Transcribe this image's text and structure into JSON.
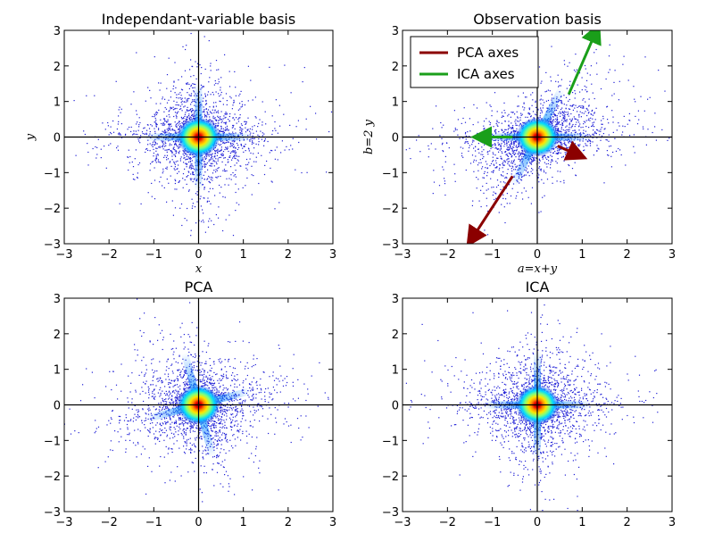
{
  "figure": {
    "background": "#ffffff"
  },
  "colors": {
    "scatter_point": "#1f1fd6",
    "axis_line": "#000000",
    "pca_axes": "#8b0000",
    "ica_axes": "#1a9f1a"
  },
  "chart_data": [
    {
      "type": "scatter",
      "title": "Independant-variable basis",
      "xlabel": "x",
      "ylabel": "y",
      "xlim": [
        -3,
        3
      ],
      "ylim": [
        -3,
        3
      ],
      "xticks": [
        "−3",
        "−2",
        "−1",
        "0",
        "1",
        "2",
        "3"
      ],
      "yticks": [
        "−3",
        "−2",
        "−1",
        "0",
        "1",
        "2",
        "3"
      ],
      "grid": false,
      "distribution": "two independent heavy-tailed sources: dense core at origin with long arms along the x and y axes",
      "arms_deg": [
        0,
        90
      ],
      "density_colormap": "jet"
    },
    {
      "type": "scatter",
      "title": "Observation basis",
      "xlabel": "a=x+y",
      "ylabel": "b=2 y",
      "xlim": [
        -3,
        3
      ],
      "ylim": [
        -3,
        3
      ],
      "xticks": [
        "−3",
        "−2",
        "−1",
        "0",
        "1",
        "2",
        "3"
      ],
      "yticks": [
        "−3",
        "−2",
        "−1",
        "0",
        "1",
        "2",
        "3"
      ],
      "grid": false,
      "distribution": "mixed observations: arms along the a axis and along the direction b = 2a",
      "arms_deg": [
        0,
        63.4
      ],
      "density_colormap": "jet",
      "legend": {
        "placement": "top-left",
        "entries": [
          {
            "name": "PCA axes",
            "color": "#8b0000"
          },
          {
            "name": "ICA axes",
            "color": "#1a9f1a"
          }
        ]
      },
      "vectors": [
        {
          "series": "PCA axes",
          "from": [
            -0.55,
            -1.1
          ],
          "to": [
            -1.45,
            -2.85
          ]
        },
        {
          "series": "PCA axes",
          "from": [
            0.45,
            -0.25
          ],
          "to": [
            0.9,
            -0.5
          ]
        },
        {
          "series": "ICA axes",
          "from": [
            0.7,
            1.2
          ],
          "to": [
            1.3,
            2.95
          ]
        },
        {
          "series": "ICA axes",
          "from": [
            -0.55,
            0.0
          ],
          "to": [
            -1.25,
            0.0
          ]
        }
      ]
    },
    {
      "type": "scatter",
      "title": "PCA",
      "xlabel": "",
      "ylabel": "",
      "xlim": [
        -3,
        3
      ],
      "ylim": [
        -3,
        3
      ],
      "xticks": [
        "−3",
        "−2",
        "−1",
        "0",
        "1",
        "2",
        "3"
      ],
      "yticks": [
        "−3",
        "−2",
        "−1",
        "0",
        "1",
        "2",
        "3"
      ],
      "grid": false,
      "distribution": "PCA-projected data: arms tilted, one toward upper-left/lower-right and one along roughly 15 degrees",
      "arms_deg": [
        15,
        105
      ],
      "density_colormap": "jet"
    },
    {
      "type": "scatter",
      "title": "ICA",
      "xlabel": "",
      "ylabel": "",
      "xlim": [
        -3,
        3
      ],
      "ylim": [
        -3,
        3
      ],
      "xticks": [
        "−3",
        "−2",
        "−1",
        "0",
        "1",
        "2",
        "3"
      ],
      "yticks": [
        "−3",
        "−2",
        "−1",
        "0",
        "1",
        "2",
        "3"
      ],
      "grid": false,
      "distribution": "ICA-recovered sources: arms aligned with the x and y axes",
      "arms_deg": [
        0,
        90
      ],
      "density_colormap": "jet"
    }
  ]
}
